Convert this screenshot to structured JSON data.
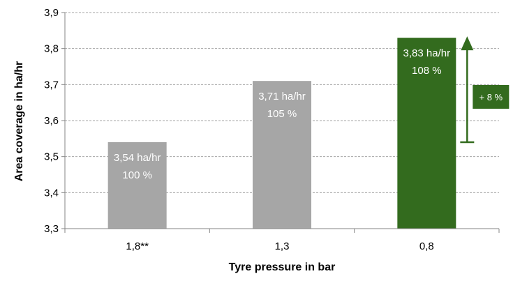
{
  "chart_data": {
    "type": "bar",
    "categories": [
      "1,8**",
      "1,3",
      "0,8"
    ],
    "values": [
      3.54,
      3.71,
      3.83
    ],
    "value_labels": [
      "3,54 ha/hr",
      "3,71 ha/hr",
      "3,83 ha/hr"
    ],
    "percent_labels": [
      "100 %",
      "105 %",
      "108 %"
    ],
    "bar_colors": [
      "#a6a6a6",
      "#a6a6a6",
      "#336b1e"
    ],
    "xlabel": "Tyre pressure in bar",
    "ylabel": "Area coverage in ha/hr",
    "ylim": [
      3.3,
      3.9
    ],
    "yticks": [
      3.3,
      3.4,
      3.5,
      3.6,
      3.7,
      3.8,
      3.9
    ],
    "ytick_labels": [
      "3,3",
      "3,4",
      "3,5",
      "3,6",
      "3,7",
      "3,8",
      "3,9"
    ],
    "grid": true,
    "annotation": {
      "text": "+ 8 %",
      "from_value": 3.54,
      "to_value": 3.83,
      "color": "#336b1e"
    }
  }
}
